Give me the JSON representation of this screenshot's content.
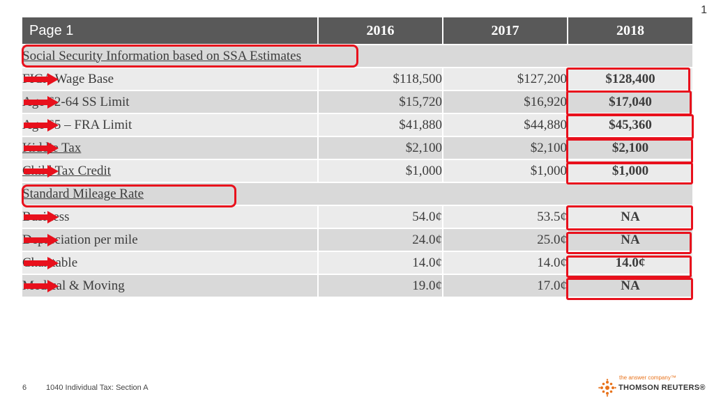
{
  "slide_number": "1",
  "table": {
    "headers": [
      "Page 1",
      "2016",
      "2017",
      "2018"
    ],
    "section_social": "Social Security Information based on SSA Estimates",
    "section_mileage": "Standard Mileage Rate",
    "rows": [
      {
        "label": "FICA Wage Base",
        "v2016": "$118,500",
        "v2017": "$127,200",
        "v2018": "$128,400"
      },
      {
        "label": "Age 62-64 SS Limit",
        "v2016": "$15,720",
        "v2017": "$16,920",
        "v2018": "$17,040"
      },
      {
        "label": "Age 65 – FRA Limit",
        "v2016": "$41,880",
        "v2017": "$44,880",
        "v2018": "$45,360"
      },
      {
        "label": "Kiddie Tax",
        "v2016": "$2,100",
        "v2017": "$2,100",
        "v2018": "$2,100"
      },
      {
        "label": "Child Tax Credit",
        "v2016": "$1,000",
        "v2017": "$1,000",
        "v2018": "$1,000"
      },
      {
        "label": "Business",
        "v2016": "54.0¢",
        "v2017": "53.5¢",
        "v2018": "NA"
      },
      {
        "label": "Depreciation per mile",
        "v2016": "24.0¢",
        "v2017": "25.0¢",
        "v2018": "NA"
      },
      {
        "label": "Charitable",
        "v2016": "14.0¢",
        "v2017": "14.0¢",
        "v2018": "14.0¢"
      },
      {
        "label": "Medical & Moving",
        "v2016": "19.0¢",
        "v2017": "17.0¢",
        "v2018": "NA"
      }
    ]
  },
  "footer": {
    "page": "6",
    "text": "1040 Individual Tax: Section A"
  },
  "logo": {
    "tagline": "the answer company™",
    "name": "THOMSON REUTERS®"
  },
  "colors": {
    "header_bg": "#595959",
    "row_dark": "#d9d9d9",
    "row_light": "#ebebeb",
    "highlight": "#e8101c",
    "brand_orange": "#e8731c"
  }
}
